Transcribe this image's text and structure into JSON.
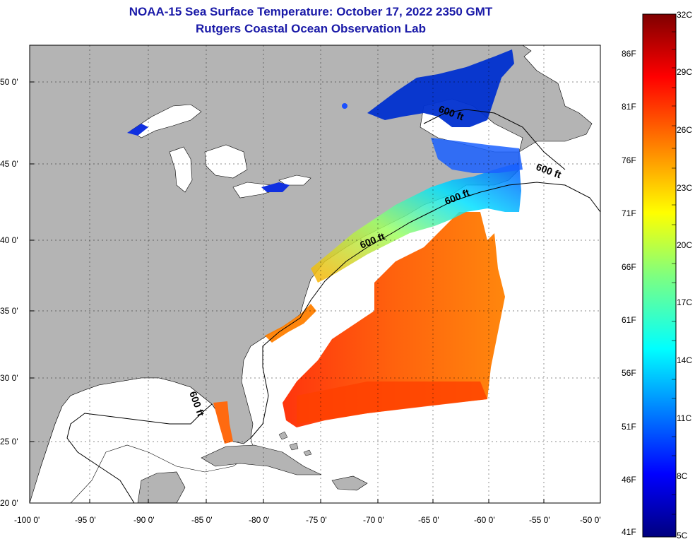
{
  "title": {
    "line1": "NOAA-15 Sea Surface Temperature:  October 17, 2022 2350 GMT",
    "line2": "Rutgers Coastal Ocean Observation Lab"
  },
  "map": {
    "lat_labels": [
      "50 0'",
      "45 0'",
      "40 0'",
      "35 0'",
      "30 0'",
      "25 0'",
      "20 0'"
    ],
    "lon_labels": [
      "-100 0'",
      "-95 0'",
      "-90 0'",
      "-85 0'",
      "-80 0'",
      "-75 0'",
      "-70 0'",
      "-65 0'",
      "-60 0'",
      "-55 0'",
      "-50 0'"
    ],
    "contour_labels": [
      "600 ft",
      "600 ft",
      "600 ft",
      "600 ft",
      "600 ft"
    ],
    "colors": {
      "land": "#b4b4b4",
      "no_data": "#ffffff",
      "gridline": "#000000"
    }
  },
  "colorbar": {
    "fahrenheit_labels": [
      "86F",
      "81F",
      "76F",
      "71F",
      "66F",
      "61F",
      "56F",
      "51F",
      "46F",
      "41F"
    ],
    "celsius_labels": [
      "32C",
      "29C",
      "26C",
      "23C",
      "20C",
      "17C",
      "14C",
      "11C",
      "8C",
      "5C"
    ],
    "range_celsius": [
      5,
      32
    ],
    "gradient": [
      "#00007f",
      "#0000ff",
      "#007fff",
      "#00ffff",
      "#7fff7f",
      "#ffff00",
      "#ff7f00",
      "#ff0000",
      "#7f0000"
    ]
  }
}
